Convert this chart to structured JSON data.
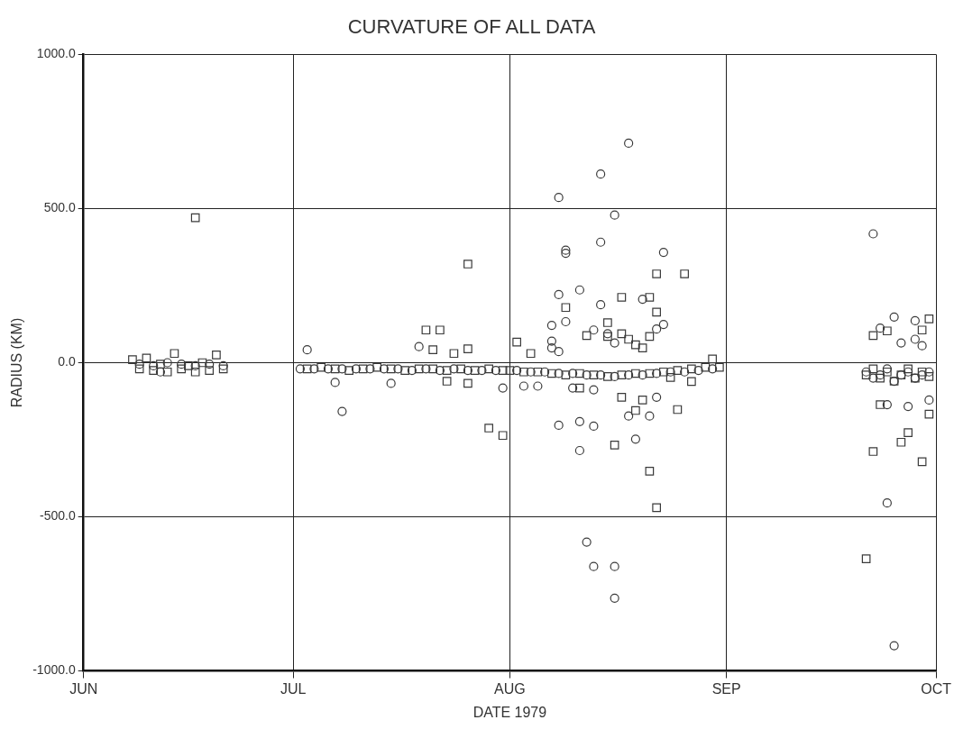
{
  "chart_data": {
    "type": "scatter",
    "title": "CURVATURE OF ALL DATA",
    "xlabel": "DATE 1979",
    "ylabel": "RADIUS (KM)",
    "xlim": [
      "1979-06-01",
      "1979-10-01"
    ],
    "xticks": [
      {
        "value": "1979-06-01",
        "label": "JUN"
      },
      {
        "value": "1979-07-01",
        "label": "JUL"
      },
      {
        "value": "1979-08-01",
        "label": "AUG"
      },
      {
        "value": "1979-09-01",
        "label": "SEP"
      },
      {
        "value": "1979-10-01",
        "label": "OCT"
      }
    ],
    "ylim": [
      -1000,
      1000
    ],
    "yticks": [
      {
        "value": -1000,
        "label": "-1000.0"
      },
      {
        "value": -500,
        "label": "-500.0"
      },
      {
        "value": 0,
        "label": "0.0"
      },
      {
        "value": 500,
        "label": "500.0"
      },
      {
        "value": 1000,
        "label": "1000.0"
      }
    ],
    "grid": true,
    "legend": false,
    "series": [
      {
        "color": "#3a3a3a",
        "marker": "square",
        "x": [
          "1979-06-08",
          "1979-06-09",
          "1979-06-10",
          "1979-06-11",
          "1979-06-12",
          "1979-06-13",
          "1979-06-14",
          "1979-06-15",
          "1979-06-16",
          "1979-06-17",
          "1979-06-18",
          "1979-06-19",
          "1979-06-20",
          "1979-06-21",
          "1979-06-17",
          "1979-07-03",
          "1979-07-05",
          "1979-07-07",
          "1979-07-09",
          "1979-07-11",
          "1979-07-13",
          "1979-07-15",
          "1979-07-17",
          "1979-07-19",
          "1979-07-21",
          "1979-07-23",
          "1979-07-25",
          "1979-07-27",
          "1979-07-29",
          "1979-07-31",
          "1979-08-01",
          "1979-08-03",
          "1979-08-05",
          "1979-08-07",
          "1979-08-09",
          "1979-08-11",
          "1979-08-13",
          "1979-08-15",
          "1979-08-17",
          "1979-08-19",
          "1979-08-21",
          "1979-08-23",
          "1979-08-25",
          "1979-08-27",
          "1979-08-29",
          "1979-08-31",
          "1979-07-26",
          "1979-07-20",
          "1979-07-22",
          "1979-07-21",
          "1979-07-24",
          "1979-07-26",
          "1979-07-23",
          "1979-07-26",
          "1979-07-29",
          "1979-07-31",
          "1979-08-02",
          "1979-08-22",
          "1979-08-26",
          "1979-08-17",
          "1979-08-21",
          "1979-08-09",
          "1979-08-22",
          "1979-08-15",
          "1979-08-12",
          "1979-08-15",
          "1979-08-17",
          "1979-08-18",
          "1979-08-21",
          "1979-08-19",
          "1979-08-20",
          "1979-08-04",
          "1979-08-30",
          "1979-08-11",
          "1979-08-27",
          "1979-08-24",
          "1979-08-17",
          "1979-08-20",
          "1979-08-19",
          "1979-08-25",
          "1979-08-16",
          "1979-08-21",
          "1979-08-22",
          "1979-09-30",
          "1979-09-29",
          "1979-09-22",
          "1979-09-24",
          "1979-09-23",
          "1979-09-30",
          "1979-09-27",
          "1979-09-26",
          "1979-09-22",
          "1979-09-29",
          "1979-09-21",
          "1979-09-21",
          "1979-09-22",
          "1979-09-23",
          "1979-09-24",
          "1979-09-25",
          "1979-09-26",
          "1979-09-27",
          "1979-09-28",
          "1979-09-29",
          "1979-09-30"
        ],
        "values": [
          10,
          -20,
          15,
          -25,
          -5,
          -30,
          30,
          -20,
          -10,
          -30,
          0,
          -25,
          25,
          -20,
          470,
          -20,
          -15,
          -20,
          -25,
          -20,
          -15,
          -20,
          -25,
          -20,
          -20,
          -25,
          -20,
          -25,
          -20,
          -25,
          -25,
          -30,
          -30,
          -35,
          -40,
          -35,
          -40,
          -45,
          -40,
          -35,
          -35,
          -30,
          -25,
          -20,
          -15,
          -15,
          320,
          106,
          106,
          42,
          30,
          45,
          -60,
          -67,
          -212,
          -236,
          67,
          288,
          288,
          212,
          212,
          179,
          164,
          130,
          88,
          85,
          94,
          76,
          85,
          58,
          48,
          30,
          12,
          -82,
          -61,
          -48,
          -112,
          -121,
          -155,
          -152,
          -267,
          -352,
          -470,
          142,
          106,
          88,
          103,
          -136,
          -167,
          -227,
          -258,
          -288,
          -321,
          -636,
          -40,
          -20,
          -50,
          -30,
          -60,
          -40,
          -20,
          -50,
          -30,
          -45
        ]
      },
      {
        "color": "#3a3a3a",
        "marker": "circle",
        "x": [
          "1979-06-09",
          "1979-06-11",
          "1979-06-13",
          "1979-06-15",
          "1979-06-17",
          "1979-06-19",
          "1979-06-21",
          "1979-06-12",
          "1979-07-02",
          "1979-07-04",
          "1979-07-06",
          "1979-07-08",
          "1979-07-10",
          "1979-07-12",
          "1979-07-14",
          "1979-07-16",
          "1979-07-18",
          "1979-07-20",
          "1979-07-22",
          "1979-07-24",
          "1979-07-26",
          "1979-07-28",
          "1979-07-30",
          "1979-08-02",
          "1979-08-04",
          "1979-08-06",
          "1979-08-08",
          "1979-08-10",
          "1979-08-12",
          "1979-08-14",
          "1979-08-16",
          "1979-08-18",
          "1979-08-20",
          "1979-08-22",
          "1979-08-24",
          "1979-08-26",
          "1979-08-28",
          "1979-08-30",
          "1979-07-03",
          "1979-07-07",
          "1979-07-08",
          "1979-07-15",
          "1979-07-19",
          "1979-07-31",
          "1979-08-18",
          "1979-08-14",
          "1979-08-08",
          "1979-08-16",
          "1979-08-14",
          "1979-08-09",
          "1979-08-09",
          "1979-08-23",
          "1979-08-08",
          "1979-08-11",
          "1979-08-14",
          "1979-08-20",
          "1979-08-09",
          "1979-08-07",
          "1979-08-23",
          "1979-08-22",
          "1979-08-13",
          "1979-08-15",
          "1979-08-16",
          "1979-08-07",
          "1979-08-07",
          "1979-08-08",
          "1979-08-03",
          "1979-08-05",
          "1979-08-10",
          "1979-08-13",
          "1979-08-22",
          "1979-08-18",
          "1979-08-21",
          "1979-08-08",
          "1979-08-11",
          "1979-08-13",
          "1979-08-11",
          "1979-08-19",
          "1979-08-12",
          "1979-08-13",
          "1979-08-16",
          "1979-08-16",
          "1979-09-22",
          "1979-09-25",
          "1979-09-23",
          "1979-09-28",
          "1979-09-28",
          "1979-09-26",
          "1979-09-29",
          "1979-09-24",
          "1979-09-27",
          "1979-09-30",
          "1979-09-24",
          "1979-09-25",
          "1979-09-21",
          "1979-09-22",
          "1979-09-23",
          "1979-09-24",
          "1979-09-25",
          "1979-09-26",
          "1979-09-27",
          "1979-09-28",
          "1979-09-29",
          "1979-09-30"
        ],
        "values": [
          -5,
          -10,
          0,
          -5,
          -10,
          -5,
          -10,
          -30,
          -20,
          -20,
          -20,
          -20,
          -20,
          -20,
          -20,
          -20,
          -25,
          -20,
          -25,
          -20,
          -25,
          -25,
          -25,
          -25,
          -30,
          -30,
          -35,
          -35,
          -40,
          -40,
          -45,
          -40,
          -40,
          -35,
          -30,
          -30,
          -25,
          -20,
          42,
          -64,
          -158,
          -67,
          52,
          -82,
          712,
          612,
          536,
          479,
          391,
          365,
          355,
          358,
          221,
          236,
          188,
          206,
          133,
          121,
          124,
          109,
          106,
          94,
          64,
          70,
          48,
          36,
          -76,
          -76,
          -82,
          -88,
          -112,
          -173,
          -173,
          -203,
          -191,
          -206,
          -285,
          -248,
          -582,
          -661,
          -661,
          -764,
          418,
          148,
          112,
          136,
          76,
          64,
          55,
          -136,
          -142,
          -121,
          -455,
          -918,
          -30,
          -50,
          -40,
          -20,
          -60,
          -40,
          -30,
          -50,
          -40,
          -30
        ]
      }
    ]
  }
}
